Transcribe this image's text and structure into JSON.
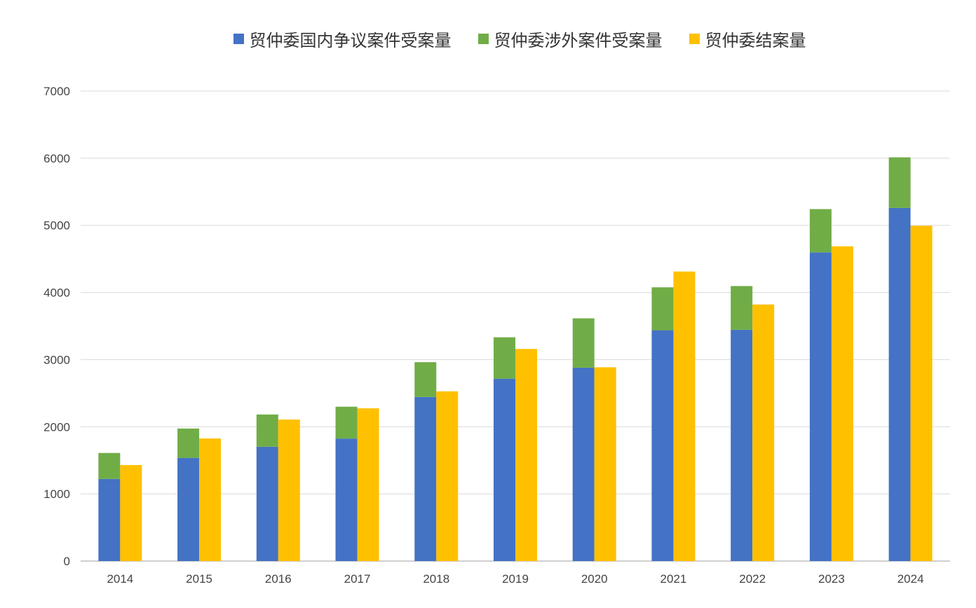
{
  "chart_data": {
    "type": "bar",
    "stacked_groups": [
      [
        "贸仲委国内争议案件受案量",
        "贸仲委涉外案件受案量"
      ],
      [
        "贸仲委结案量"
      ]
    ],
    "categories": [
      "2014",
      "2015",
      "2016",
      "2017",
      "2018",
      "2019",
      "2020",
      "2021",
      "2022",
      "2023",
      "2024"
    ],
    "series": [
      {
        "name": "贸仲委国内争议案件受案量",
        "color": "#4472C4",
        "values": [
          1223,
          1537,
          1702,
          1824,
          2444,
          2716,
          2880,
          3437,
          3445,
          4597,
          5259
        ]
      },
      {
        "name": "贸仲委涉外案件受案量",
        "color": "#70AD47",
        "values": [
          387,
          437,
          481,
          475,
          518,
          617,
          735,
          640,
          651,
          645,
          754
        ]
      },
      {
        "name": "贸仲委结案量",
        "color": "#FFC000",
        "values": [
          1430,
          1826,
          2108,
          2275,
          2528,
          3159,
          2886,
          4312,
          3821,
          4688,
          4994
        ]
      }
    ],
    "ylim": [
      0,
      7000
    ],
    "yticks": [
      "0",
      "1000",
      "2000",
      "3000",
      "4000",
      "5000",
      "6000",
      "7000"
    ],
    "grid": true,
    "legend_position": "top",
    "title": "",
    "xlabel": "",
    "ylabel": ""
  }
}
